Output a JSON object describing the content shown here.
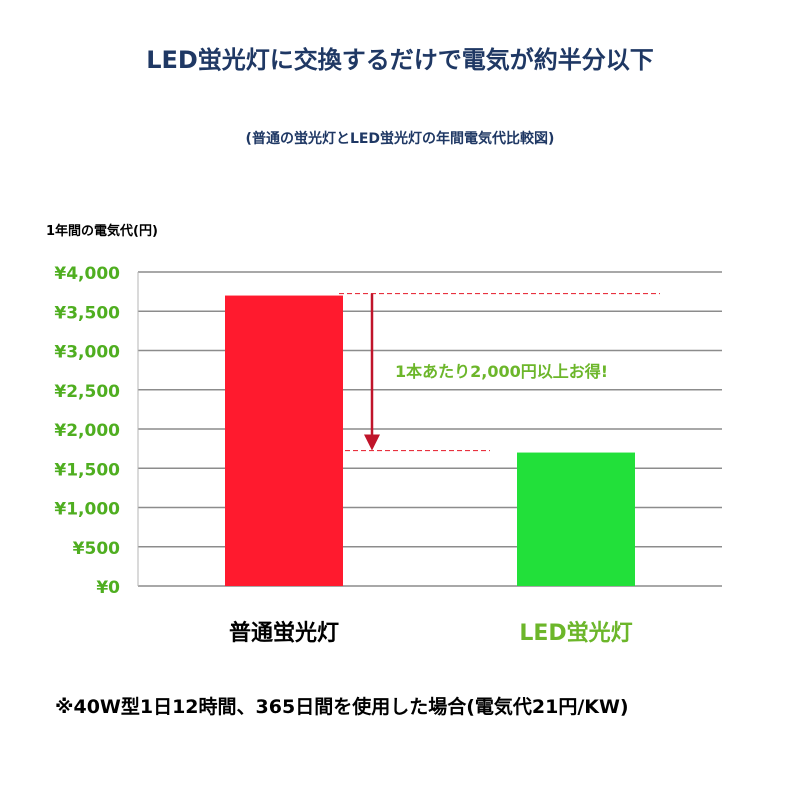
{
  "header": {
    "title": "LED蛍光灯に交換するだけで電気が約半分以下",
    "subtitle": "(普通の蛍光灯とLED蛍光灯の年間電気代比較図)"
  },
  "chart_data": {
    "type": "bar",
    "ylabel": "1年間の電気代(円)",
    "categories": [
      "普通蛍光灯",
      "LED蛍光灯"
    ],
    "values": [
      3700,
      1700
    ],
    "ylim": [
      0,
      4000
    ],
    "yticks": [
      0,
      500,
      1000,
      1500,
      2000,
      2500,
      3000,
      3500,
      4000
    ],
    "ytick_labels": [
      "¥0",
      "¥500",
      "¥1,000",
      "¥1,500",
      "¥2,000",
      "¥2,500",
      "¥3,000",
      "¥3,500",
      "¥4,000"
    ],
    "grid": true,
    "annotation": "1本あたり2,000円以上お得!"
  },
  "colors": {
    "bar_fluorescent": "#ff1a2e",
    "bar_led": "#22e03a",
    "tick_label": "#4fae20",
    "led_label": "#6cb62a",
    "arrow": "#c0142a",
    "grid": "#8c8c8c",
    "title": "#1f3864"
  },
  "footnote": "※40W型1日12時間、365日間を使用した場合(電気代21円/KW)"
}
